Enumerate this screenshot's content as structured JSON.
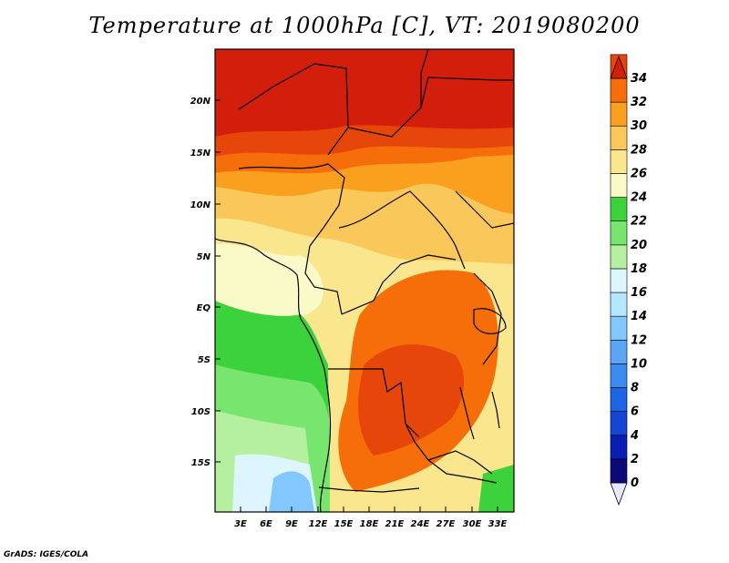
{
  "title": "Temperature at 1000hPa [C], VT: 2019080200",
  "credit": "GrADS: IGES/COLA",
  "map": {
    "lat_labels": [
      "20N",
      "15N",
      "10N",
      "5N",
      "EQ",
      "5S",
      "10S",
      "15S"
    ],
    "lon_labels": [
      "3E",
      "6E",
      "9E",
      "12E",
      "15E",
      "18E",
      "21E",
      "24E",
      "27E",
      "30E",
      "33E"
    ]
  },
  "colorbar": {
    "labels": [
      "0",
      "2",
      "4",
      "6",
      "8",
      "10",
      "12",
      "14",
      "16",
      "18",
      "20",
      "22",
      "24",
      "26",
      "28",
      "30",
      "32",
      "34"
    ],
    "colors": [
      "#0a0a78",
      "#0a1eb4",
      "#1446d2",
      "#1e64e6",
      "#3c8cf0",
      "#5aa5f5",
      "#82c8ff",
      "#b4e6ff",
      "#dcf5ff",
      "#b4f0a0",
      "#78e66e",
      "#3cd23c",
      "#fafac8",
      "#fae68c",
      "#fac85a",
      "#faa01e",
      "#f56e0a",
      "#e6460a",
      "#d21e0a"
    ]
  },
  "regions": {
    "north_sahara": "#d21e0a",
    "sahel_32": "#e6460a",
    "sahel_30": "#f56e0a",
    "belt_28": "#faa01e",
    "belt_26": "#fac85a",
    "gulf_24": "#fae68c",
    "gulf_22": "#fafac8",
    "sea_20": "#3cd23c",
    "sea_18": "#78e66e",
    "sea_16": "#b4f0a0",
    "sea_14": "#dcf5ff",
    "sea_12": "#82c8ff",
    "congo_30": "#f56e0a",
    "congo_32": "#e6460a"
  }
}
